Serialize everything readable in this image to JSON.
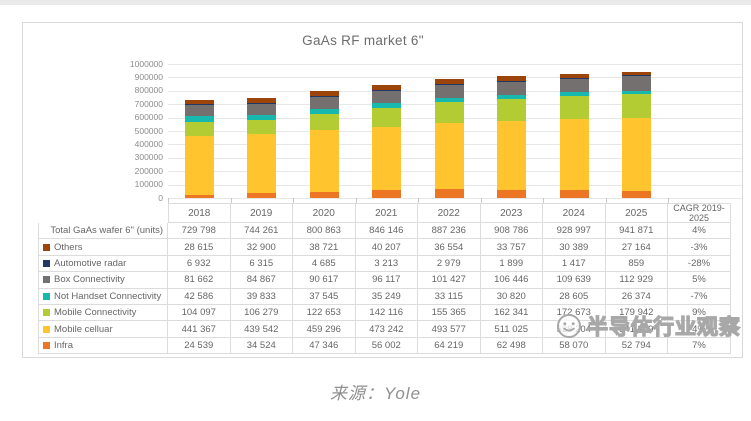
{
  "caption": "来源：Yole",
  "watermark": {
    "text": "半导体行业观察"
  },
  "chart_data": {
    "type": "bar",
    "stacked": true,
    "title": "GaAs RF market 6\"",
    "categories": [
      "2018",
      "2019",
      "2020",
      "2021",
      "2022",
      "2023",
      "2024",
      "2025"
    ],
    "ylim": [
      0,
      1000000
    ],
    "ytick_step": 100000,
    "grid": "horizontal",
    "legend_position": "table-left",
    "series": [
      {
        "name": "Infra",
        "color": "#ED7624",
        "values": [
          24539,
          34524,
          47346,
          56002,
          64219,
          62498,
          58070,
          52794
        ]
      },
      {
        "name": "Mobile celluar",
        "color": "#FFC42E",
        "values": [
          441367,
          439542,
          459296,
          473242,
          493577,
          511025,
          528204,
          541809
        ]
      },
      {
        "name": "Mobile Connectivity",
        "color": "#B3CC34",
        "values": [
          104097,
          106279,
          122653,
          142116,
          155365,
          162341,
          172673,
          179942
        ]
      },
      {
        "name": "Not Handset Connectivity",
        "color": "#17B8AE",
        "values": [
          42586,
          39833,
          37545,
          35249,
          33115,
          30820,
          28605,
          26374
        ]
      },
      {
        "name": "Box Connectivity",
        "color": "#757070",
        "values": [
          81662,
          84867,
          90617,
          96117,
          101427,
          106446,
          109639,
          112929
        ]
      },
      {
        "name": "Automotive radar",
        "color": "#1F3864",
        "values": [
          6932,
          6315,
          4685,
          3213,
          2979,
          1899,
          1417,
          859
        ]
      },
      {
        "name": "Others",
        "color": "#9C4409",
        "values": [
          28615,
          32900,
          38721,
          40207,
          36554,
          33757,
          30389,
          27164
        ]
      }
    ],
    "totals": [
      729798,
      744261,
      800863,
      846146,
      887236,
      908786,
      928997,
      941871
    ]
  },
  "table": {
    "col_headers": [
      "2018",
      "2019",
      "2020",
      "2021",
      "2022",
      "2023",
      "2024",
      "2025"
    ],
    "cagr_header": "CAGR 2019-2025",
    "rows": [
      {
        "label": "Total GaAs wafer 6\" (units)",
        "swatch": null,
        "values": [
          "729 798",
          "744 261",
          "800 863",
          "846 146",
          "887 236",
          "908 786",
          "928 997",
          "941 871"
        ],
        "cagr": "4%"
      },
      {
        "label": "Others",
        "swatch": "#9C4409",
        "values": [
          "28 615",
          "32 900",
          "38 721",
          "40 207",
          "36 554",
          "33 757",
          "30 389",
          "27 164"
        ],
        "cagr": "-3%"
      },
      {
        "label": "Automotive radar",
        "swatch": "#1F3864",
        "values": [
          "6 932",
          "6 315",
          "4 685",
          "3 213",
          "2 979",
          "1 899",
          "1 417",
          "859"
        ],
        "cagr": "-28%"
      },
      {
        "label": "Box Connectivity",
        "swatch": "#757070",
        "values": [
          "81 662",
          "84 867",
          "90 617",
          "96 117",
          "101 427",
          "106 446",
          "109 639",
          "112 929"
        ],
        "cagr": "5%"
      },
      {
        "label": "Not Handset Connectivity",
        "swatch": "#17B8AE",
        "values": [
          "42 586",
          "39 833",
          "37 545",
          "35 249",
          "33 115",
          "30 820",
          "28 605",
          "26 374"
        ],
        "cagr": "-7%"
      },
      {
        "label": "Mobile Connectivity",
        "swatch": "#B3CC34",
        "values": [
          "104 097",
          "106 279",
          "122 653",
          "142 116",
          "155 365",
          "162 341",
          "172 673",
          "179 942"
        ],
        "cagr": "9%"
      },
      {
        "label": "Mobile celluar",
        "swatch": "#FFC42E",
        "values": [
          "441 367",
          "439 542",
          "459 296",
          "473 242",
          "493 577",
          "511 025",
          "528 204",
          "541 809"
        ],
        "cagr": "4%"
      },
      {
        "label": "Infra",
        "swatch": "#ED7624",
        "values": [
          "24 539",
          "34 524",
          "47 346",
          "56 002",
          "64 219",
          "62 498",
          "58 070",
          "52 794"
        ],
        "cagr": "7%"
      }
    ]
  }
}
